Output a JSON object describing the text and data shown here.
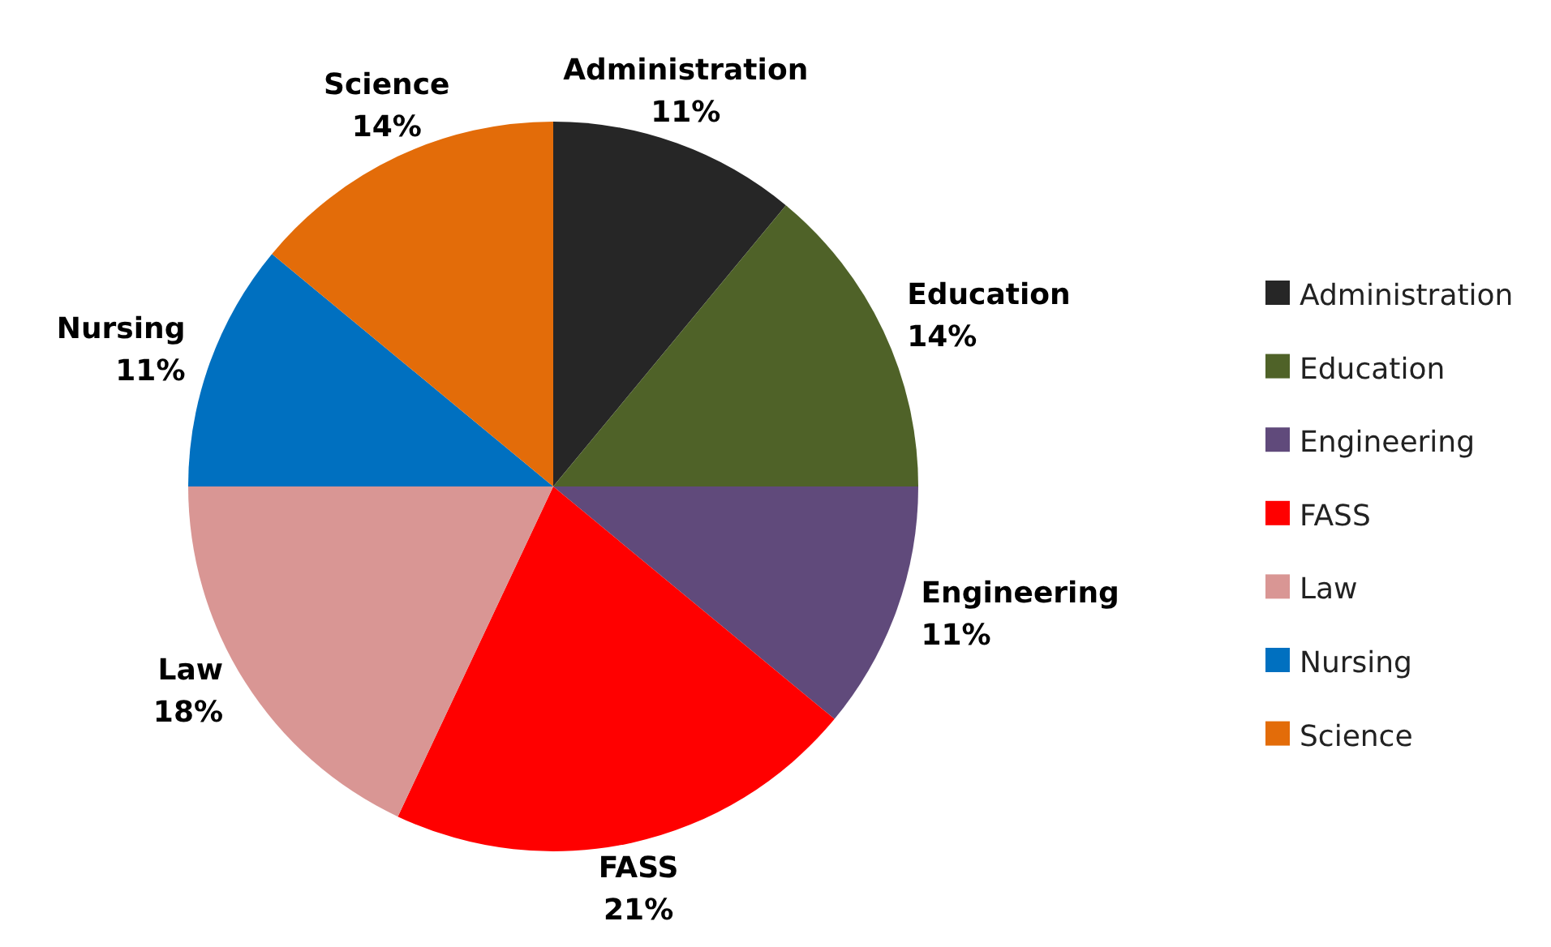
{
  "chart_data": {
    "type": "pie",
    "categories": [
      "Administration",
      "Education",
      "Engineering",
      "FASS",
      "Law",
      "Nursing",
      "Science"
    ],
    "values": [
      11,
      14,
      11,
      21,
      18,
      11,
      14
    ],
    "colors": [
      "#262626",
      "#4f6228",
      "#604a7b",
      "#ff0000",
      "#d99694",
      "#0070c0",
      "#e36c09"
    ],
    "value_labels": [
      "11%",
      "14%",
      "11%",
      "21%",
      "18%",
      "11%",
      "14%"
    ],
    "legend": "right"
  }
}
